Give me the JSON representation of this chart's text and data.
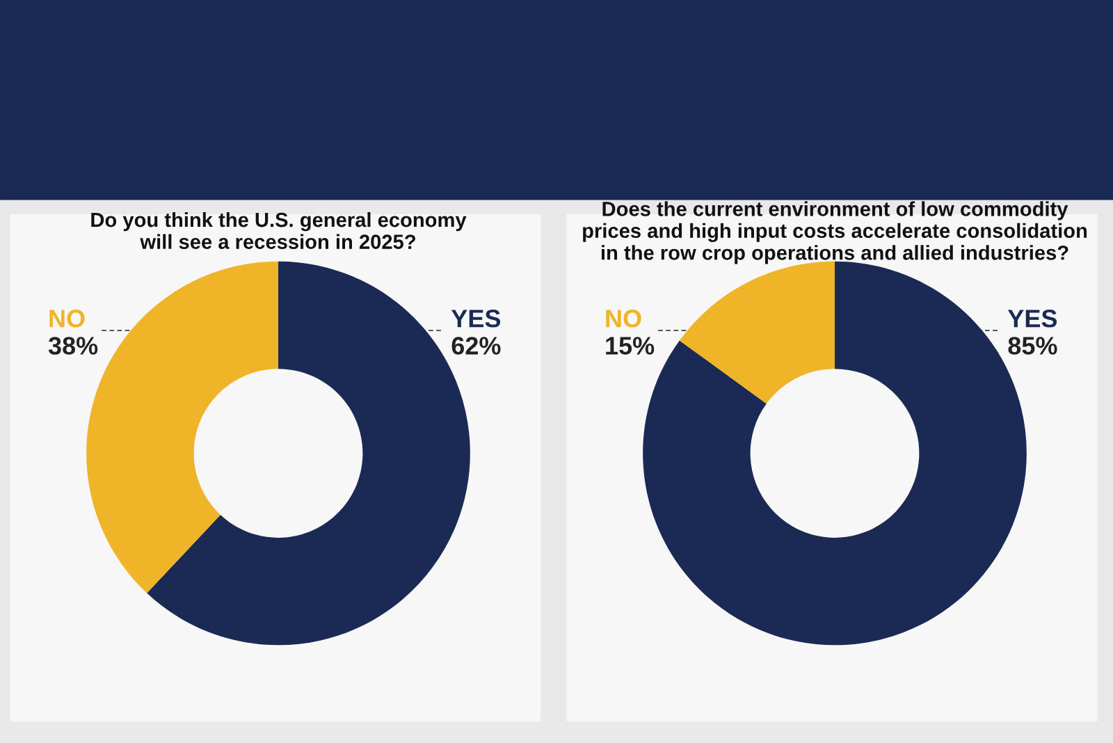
{
  "chart_data": [
    {
      "type": "donut",
      "title": "Do you think the U.S. general economy\nwill see a recession in 2025?",
      "categories": [
        "YES",
        "NO"
      ],
      "values": [
        62,
        38
      ],
      "value_labels": [
        "62%",
        "38%"
      ],
      "colors": [
        "#1b2a55",
        "#f0b429"
      ]
    },
    {
      "type": "donut",
      "title": "Does the current environment of low commodity\nprices and high input costs accelerate consolidation\nin the row crop operations and allied industries?",
      "categories": [
        "YES",
        "NO"
      ],
      "values": [
        85,
        15
      ],
      "value_labels": [
        "85%",
        "15%"
      ],
      "colors": [
        "#1b2a55",
        "#f0b429"
      ]
    }
  ]
}
